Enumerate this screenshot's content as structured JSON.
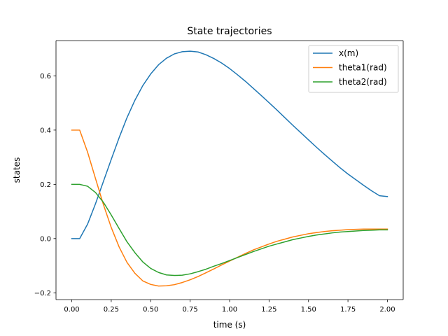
{
  "chart_data": {
    "type": "line",
    "title": "State trajectories",
    "xlabel": "time (s)",
    "ylabel": "states",
    "xlim": [
      -0.1,
      2.1
    ],
    "ylim": [
      -0.225,
      0.73
    ],
    "xticks": [
      0.0,
      0.25,
      0.5,
      0.75,
      1.0,
      1.25,
      1.5,
      1.75,
      2.0
    ],
    "xtick_labels": [
      "0.00",
      "0.25",
      "0.50",
      "0.75",
      "1.00",
      "1.25",
      "1.50",
      "1.75",
      "2.00"
    ],
    "yticks": [
      -0.2,
      0.0,
      0.2,
      0.4,
      0.6
    ],
    "ytick_labels": [
      "−0.2",
      "0.0",
      "0.2",
      "0.4",
      "0.6"
    ],
    "grid": false,
    "legend_position": "top-right",
    "x": [
      0.0,
      0.05,
      0.1,
      0.15,
      0.2,
      0.25,
      0.3,
      0.35,
      0.4,
      0.45,
      0.5,
      0.55,
      0.6,
      0.65,
      0.7,
      0.75,
      0.8,
      0.85,
      0.9,
      0.95,
      1.0,
      1.05,
      1.1,
      1.15,
      1.2,
      1.25,
      1.3,
      1.35,
      1.4,
      1.45,
      1.5,
      1.55,
      1.6,
      1.65,
      1.7,
      1.75,
      1.8,
      1.85,
      1.9,
      1.95,
      2.0
    ],
    "series": [
      {
        "name": "x(m)",
        "color": "#1f77b4",
        "values": [
          0.0,
          0.0,
          0.053,
          0.128,
          0.21,
          0.292,
          0.372,
          0.446,
          0.51,
          0.564,
          0.607,
          0.641,
          0.665,
          0.681,
          0.689,
          0.691,
          0.688,
          0.678,
          0.664,
          0.647,
          0.627,
          0.604,
          0.58,
          0.554,
          0.528,
          0.501,
          0.474,
          0.446,
          0.418,
          0.391,
          0.364,
          0.337,
          0.311,
          0.286,
          0.261,
          0.238,
          0.217,
          0.196,
          0.176,
          0.158,
          0.155
        ]
      },
      {
        "name": "theta1(rad)",
        "color": "#ff7f0e",
        "values": [
          0.4,
          0.4,
          0.319,
          0.222,
          0.126,
          0.041,
          -0.031,
          -0.088,
          -0.128,
          -0.156,
          -0.169,
          -0.175,
          -0.174,
          -0.17,
          -0.162,
          -0.152,
          -0.14,
          -0.126,
          -0.112,
          -0.097,
          -0.083,
          -0.069,
          -0.055,
          -0.042,
          -0.031,
          -0.02,
          -0.01,
          -0.002,
          0.006,
          0.012,
          0.018,
          0.022,
          0.026,
          0.029,
          0.031,
          0.033,
          0.034,
          0.035,
          0.035,
          0.035,
          0.035
        ]
      },
      {
        "name": "theta2(rad)",
        "color": "#2ca02c",
        "values": [
          0.2,
          0.2,
          0.193,
          0.17,
          0.134,
          0.087,
          0.037,
          -0.012,
          -0.052,
          -0.086,
          -0.11,
          -0.125,
          -0.134,
          -0.136,
          -0.135,
          -0.13,
          -0.122,
          -0.113,
          -0.102,
          -0.092,
          -0.081,
          -0.07,
          -0.059,
          -0.048,
          -0.038,
          -0.028,
          -0.02,
          -0.012,
          -0.004,
          0.002,
          0.008,
          0.013,
          0.017,
          0.021,
          0.024,
          0.026,
          0.028,
          0.03,
          0.031,
          0.032,
          0.032
        ]
      }
    ]
  }
}
